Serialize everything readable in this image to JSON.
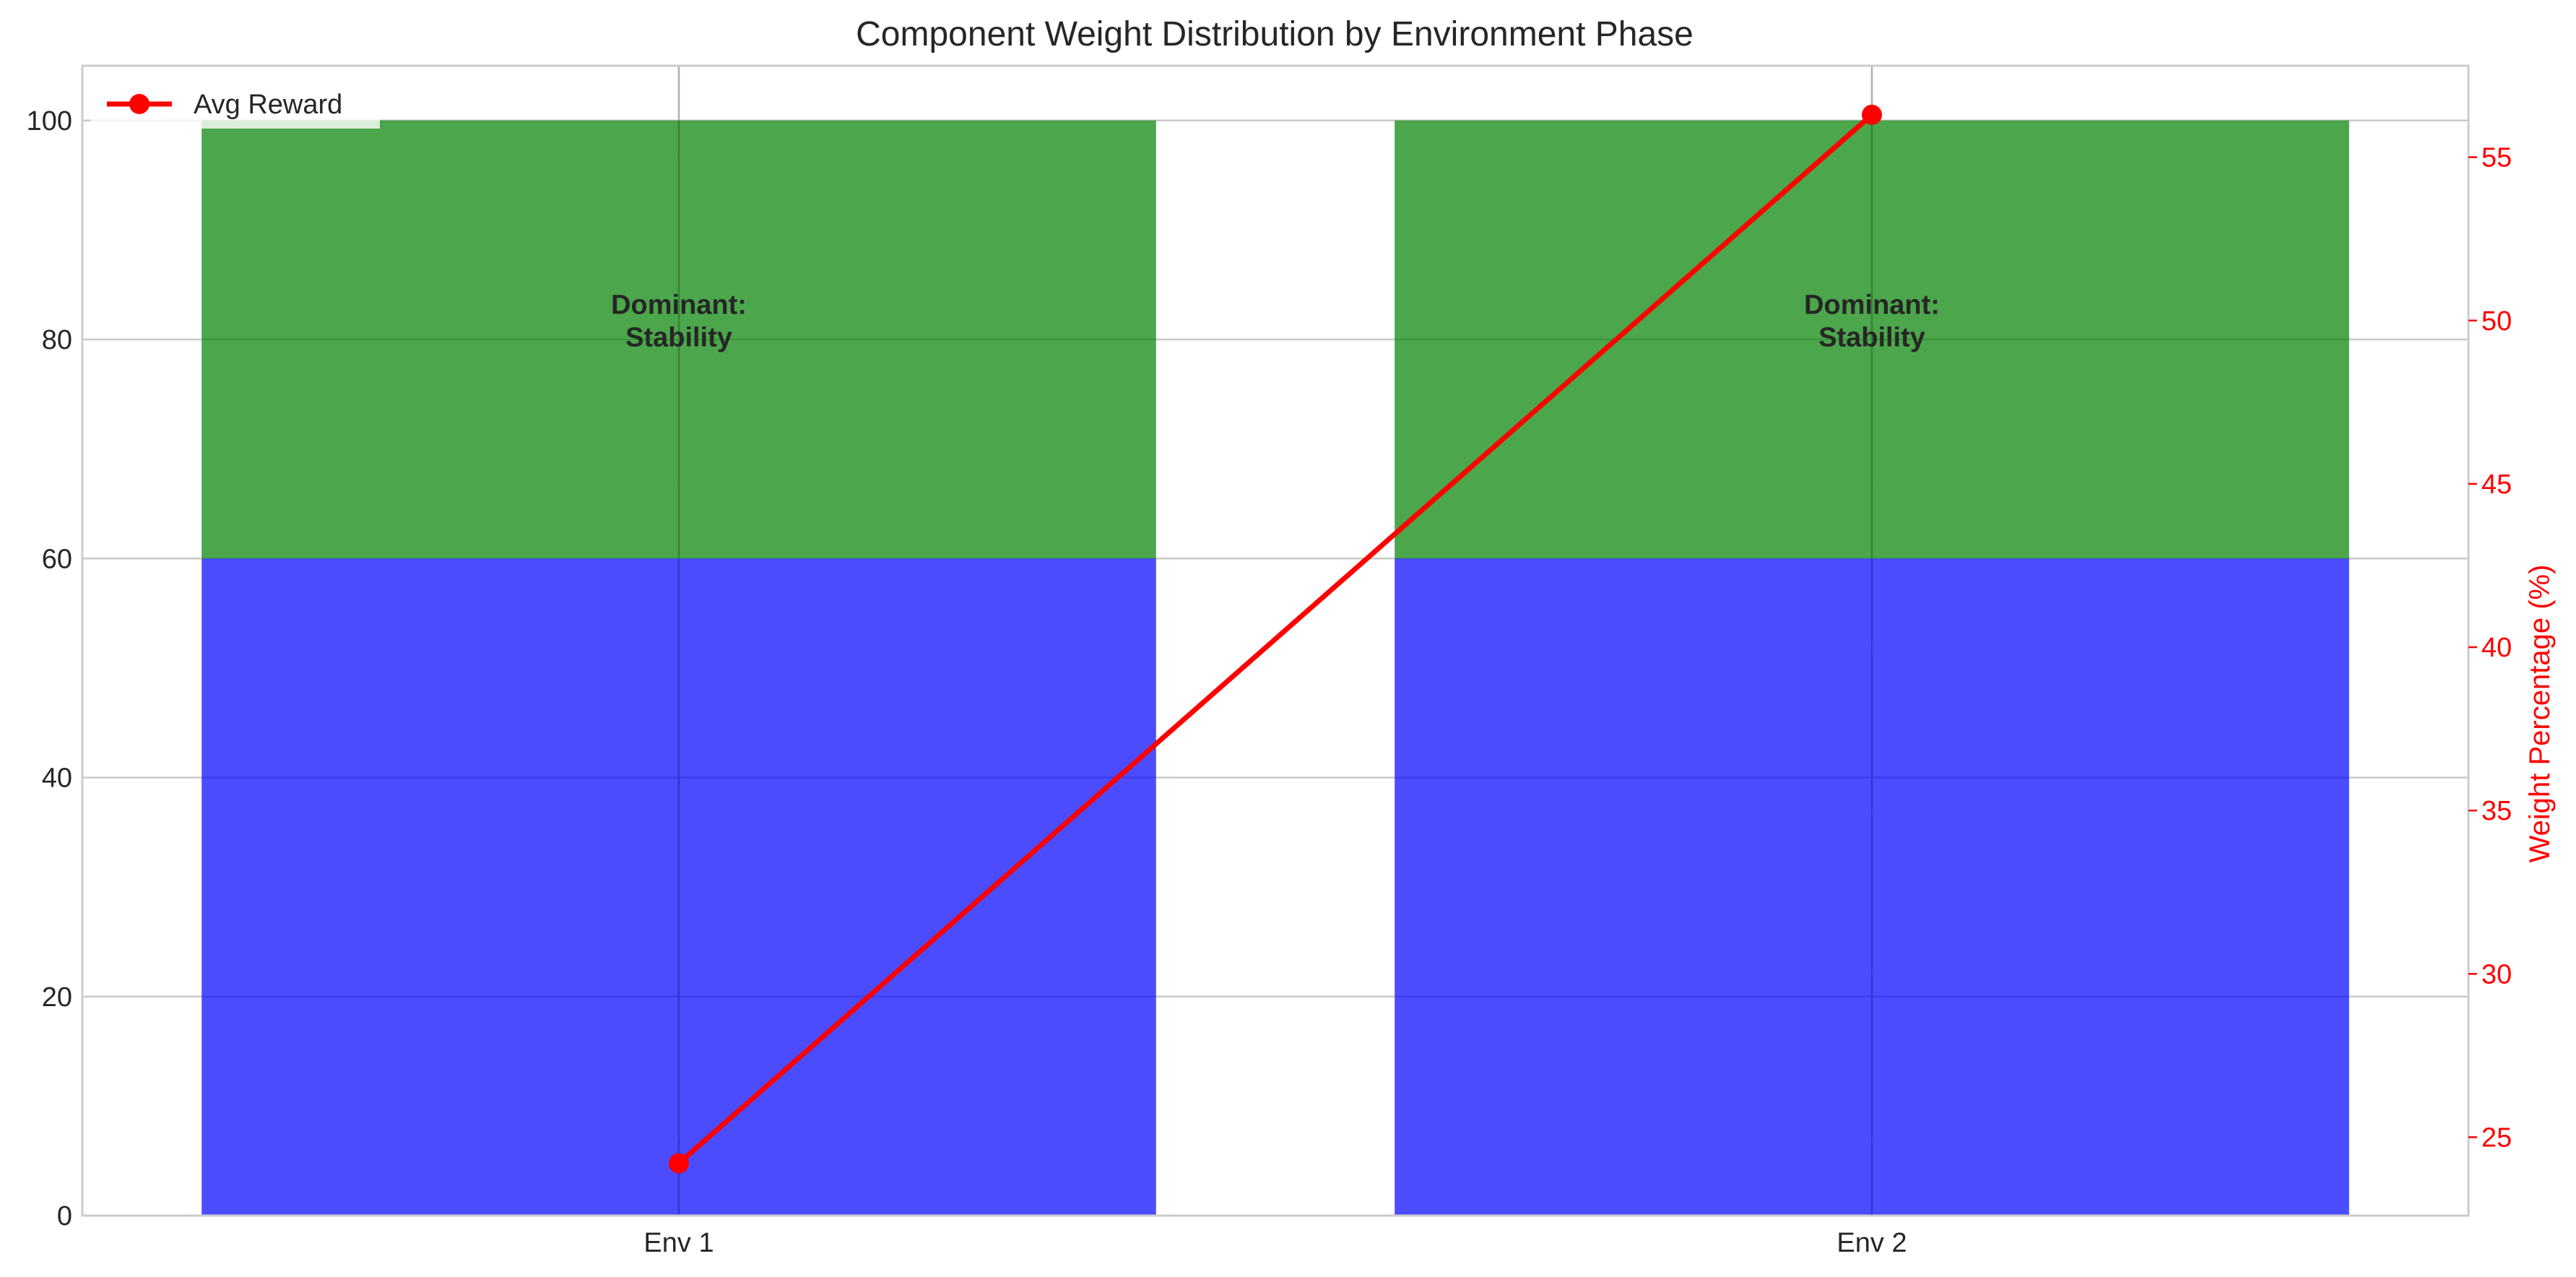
{
  "chart_data": {
    "type": "bar",
    "title": "Component Weight Distribution by Environment Phase",
    "categories": [
      "Env 1",
      "Env 2"
    ],
    "stacked": true,
    "series": [
      {
        "values": [
          60,
          60
        ],
        "color": "#0000ff"
      },
      {
        "values": [
          40,
          40
        ],
        "color": "#008000"
      }
    ],
    "ylim": [
      0,
      105
    ],
    "yticks": [
      0,
      20,
      40,
      60,
      80,
      100
    ],
    "annotations": [
      {
        "category": "Env 1",
        "y": 82,
        "text_line1": "Dominant:",
        "text_line2": "Stability"
      },
      {
        "category": "Env 2",
        "y": 82,
        "text_line1": "Dominant:",
        "text_line2": "Stability"
      }
    ],
    "secondary_axis": {
      "ylabel": "Weight Percentage (%)",
      "ylim": [
        22.6,
        57.8
      ],
      "yticks": [
        25,
        30,
        35,
        40,
        45,
        50,
        55
      ],
      "color": "#ff0000"
    },
    "line_series": {
      "name": "Avg Reward",
      "axis": "right",
      "color": "#ff0000",
      "values": [
        24.2,
        56.3
      ]
    },
    "legend": {
      "position": "upper-left",
      "label": "Avg Reward"
    },
    "grid": true
  }
}
